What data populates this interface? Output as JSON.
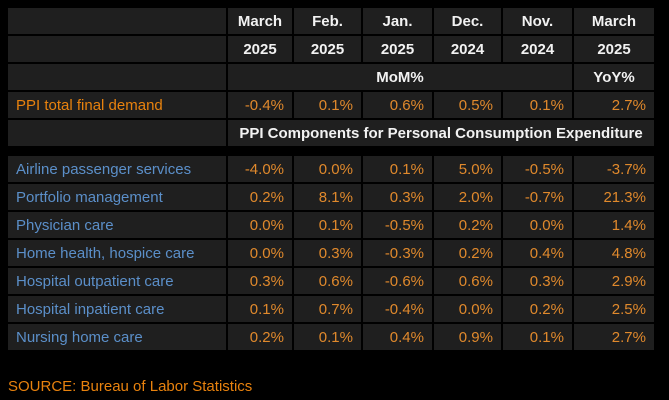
{
  "chart_data": {
    "type": "table",
    "columns": [
      {
        "month": "March",
        "year": "2025"
      },
      {
        "month": "Feb.",
        "year": "2025"
      },
      {
        "month": "Jan.",
        "year": "2025"
      },
      {
        "month": "Dec.",
        "year": "2024"
      },
      {
        "month": "Nov.",
        "year": "2024"
      },
      {
        "month": "March",
        "year": "2025"
      }
    ],
    "measures": {
      "mom": "MoM%",
      "yoy": "YoY%"
    },
    "total_row": {
      "label": "PPI total final demand",
      "values": [
        "-0.4%",
        "0.1%",
        "0.6%",
        "0.5%",
        "0.1%",
        "2.7%"
      ]
    },
    "section_header": "PPI Components for Personal Consumption Expenditure",
    "rows": [
      {
        "label": "Airline passenger services",
        "values": [
          "-4.0%",
          "0.0%",
          "0.1%",
          "5.0%",
          "-0.5%",
          "-3.7%"
        ]
      },
      {
        "label": "Portfolio management",
        "values": [
          "0.2%",
          "8.1%",
          "0.3%",
          "2.0%",
          "-0.7%",
          "21.3%"
        ]
      },
      {
        "label": "Physician care",
        "values": [
          "0.0%",
          "0.1%",
          "-0.5%",
          "0.2%",
          "0.0%",
          "1.4%"
        ]
      },
      {
        "label": "Home health, hospice care",
        "values": [
          "0.0%",
          "0.3%",
          "-0.3%",
          "0.2%",
          "0.4%",
          "4.8%"
        ]
      },
      {
        "label": "Hospital outpatient care",
        "values": [
          "0.3%",
          "0.6%",
          "-0.6%",
          "0.6%",
          "0.3%",
          "2.9%"
        ]
      },
      {
        "label": "Hospital inpatient care",
        "values": [
          "0.1%",
          "0.7%",
          "-0.4%",
          "0.0%",
          "0.2%",
          "2.5%"
        ]
      },
      {
        "label": "Nursing home care",
        "values": [
          "0.2%",
          "0.1%",
          "0.4%",
          "0.9%",
          "0.1%",
          "2.7%"
        ]
      }
    ],
    "source": "SOURCE: Bureau of Labor Statistics"
  },
  "colors": {
    "background": "#000000",
    "cell_background": "#1f1f1f",
    "header_text": "#f2f2f2",
    "value_text": "#e0892c",
    "label_text": "#5b8fc9",
    "accent_orange": "#e8820e"
  }
}
